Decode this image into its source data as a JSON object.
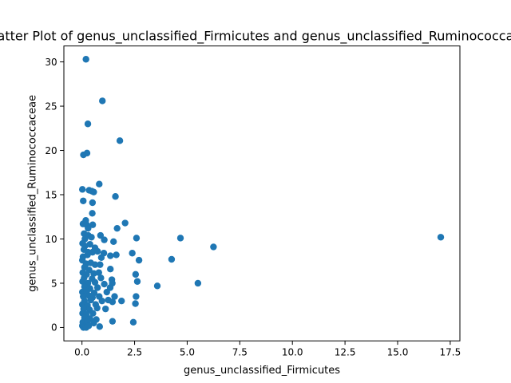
{
  "chart_data": {
    "type": "scatter",
    "title": "Scatter Plot of genus_unclassified_Firmicutes and genus_unclassified_Ruminococcaceae",
    "xlabel": "genus_unclassified_Firmicutes",
    "ylabel": "genus_unclassified_Ruminococcaceae",
    "xlim": [
      -0.86,
      17.96
    ],
    "ylim": [
      -1.51,
      31.8
    ],
    "xticks": [
      0.0,
      2.5,
      5.0,
      7.5,
      10.0,
      12.5,
      15.0,
      17.5
    ],
    "xtick_labels": [
      "0.0",
      "2.5",
      "5.0",
      "7.5",
      "10.0",
      "12.5",
      "15.0",
      "17.5"
    ],
    "yticks": [
      0,
      5,
      10,
      15,
      20,
      25,
      30
    ],
    "ytick_labels": [
      "0",
      "5",
      "10",
      "15",
      "20",
      "25",
      "30"
    ],
    "grid": false,
    "marker_color": "#1f77b4",
    "points": [
      [
        0.19,
        30.3
      ],
      [
        0.97,
        25.6
      ],
      [
        0.28,
        23.0
      ],
      [
        1.8,
        21.1
      ],
      [
        0.07,
        19.5
      ],
      [
        0.24,
        19.7
      ],
      [
        0.82,
        16.2
      ],
      [
        0.02,
        15.6
      ],
      [
        0.34,
        15.5
      ],
      [
        0.56,
        15.3
      ],
      [
        0.47,
        15.4
      ],
      [
        1.59,
        14.8
      ],
      [
        0.06,
        14.3
      ],
      [
        0.5,
        14.1
      ],
      [
        0.49,
        12.9
      ],
      [
        0.18,
        12.1
      ],
      [
        0.05,
        11.7
      ],
      [
        0.22,
        11.6
      ],
      [
        0.51,
        11.6
      ],
      [
        2.05,
        11.8
      ],
      [
        0.29,
        11.2
      ],
      [
        1.67,
        11.2
      ],
      [
        0.1,
        10.6
      ],
      [
        0.3,
        10.4
      ],
      [
        0.45,
        10.2
      ],
      [
        0.88,
        10.4
      ],
      [
        1.06,
        9.9
      ],
      [
        0.14,
        10.0
      ],
      [
        2.59,
        10.1
      ],
      [
        4.68,
        10.1
      ],
      [
        17.05,
        10.2
      ],
      [
        6.25,
        9.1
      ],
      [
        0.03,
        9.5
      ],
      [
        0.14,
        9.2
      ],
      [
        0.38,
        9.4
      ],
      [
        0.62,
        9.0
      ],
      [
        1.5,
        9.7
      ],
      [
        0.09,
        8.8
      ],
      [
        0.29,
        8.5
      ],
      [
        0.5,
        8.5
      ],
      [
        0.74,
        8.6
      ],
      [
        1.04,
        8.4
      ],
      [
        0.05,
        8.0
      ],
      [
        0.26,
        8.2
      ],
      [
        0.92,
        7.9
      ],
      [
        1.35,
        8.1
      ],
      [
        1.63,
        8.2
      ],
      [
        2.39,
        8.4
      ],
      [
        2.71,
        7.6
      ],
      [
        4.26,
        7.7
      ],
      [
        0.02,
        7.6
      ],
      [
        0.2,
        7.2
      ],
      [
        0.42,
        7.3
      ],
      [
        0.62,
        7.1
      ],
      [
        0.86,
        7.1
      ],
      [
        0.12,
        6.8
      ],
      [
        0.34,
        6.5
      ],
      [
        1.35,
        6.6
      ],
      [
        0.04,
        6.2
      ],
      [
        0.22,
        6.0
      ],
      [
        0.56,
        6.1
      ],
      [
        0.8,
        6.2
      ],
      [
        2.55,
        6.0
      ],
      [
        0.1,
        5.6
      ],
      [
        0.48,
        5.5
      ],
      [
        0.9,
        5.6
      ],
      [
        1.42,
        5.4
      ],
      [
        0.03,
        5.2
      ],
      [
        0.28,
        5.0
      ],
      [
        0.62,
        5.1
      ],
      [
        1.06,
        4.9
      ],
      [
        1.44,
        5.0
      ],
      [
        2.63,
        5.2
      ],
      [
        3.58,
        4.7
      ],
      [
        5.51,
        5.0
      ],
      [
        0.12,
        4.6
      ],
      [
        0.38,
        4.4
      ],
      [
        0.74,
        4.5
      ],
      [
        1.34,
        4.5
      ],
      [
        0.02,
        4.0
      ],
      [
        0.22,
        4.1
      ],
      [
        0.58,
        3.9
      ],
      [
        1.18,
        4.0
      ],
      [
        0.06,
        3.5
      ],
      [
        0.32,
        3.6
      ],
      [
        0.5,
        3.4
      ],
      [
        0.82,
        3.5
      ],
      [
        1.55,
        3.5
      ],
      [
        2.57,
        3.5
      ],
      [
        0.12,
        3.0
      ],
      [
        0.42,
        3.1
      ],
      [
        0.95,
        3.0
      ],
      [
        1.25,
        3.1
      ],
      [
        1.88,
        3.0
      ],
      [
        0.02,
        2.6
      ],
      [
        0.26,
        2.5
      ],
      [
        0.65,
        2.6
      ],
      [
        1.45,
        2.9
      ],
      [
        2.54,
        2.7
      ],
      [
        0.08,
        2.1
      ],
      [
        0.36,
        2.0
      ],
      [
        0.72,
        2.2
      ],
      [
        1.12,
        2.1
      ],
      [
        0.03,
        1.6
      ],
      [
        0.2,
        1.5
      ],
      [
        0.52,
        1.6
      ],
      [
        0.12,
        1.1
      ],
      [
        0.38,
        1.0
      ],
      [
        0.68,
        0.9
      ],
      [
        0.04,
        0.6
      ],
      [
        0.26,
        0.7
      ],
      [
        0.56,
        0.5
      ],
      [
        1.45,
        0.7
      ],
      [
        2.44,
        0.6
      ],
      [
        0.02,
        0.2
      ],
      [
        0.14,
        0.1
      ],
      [
        0.32,
        0.2
      ],
      [
        0.84,
        0.1
      ],
      [
        0.07,
        0.0
      ],
      [
        0.2,
        0.0
      ]
    ]
  }
}
